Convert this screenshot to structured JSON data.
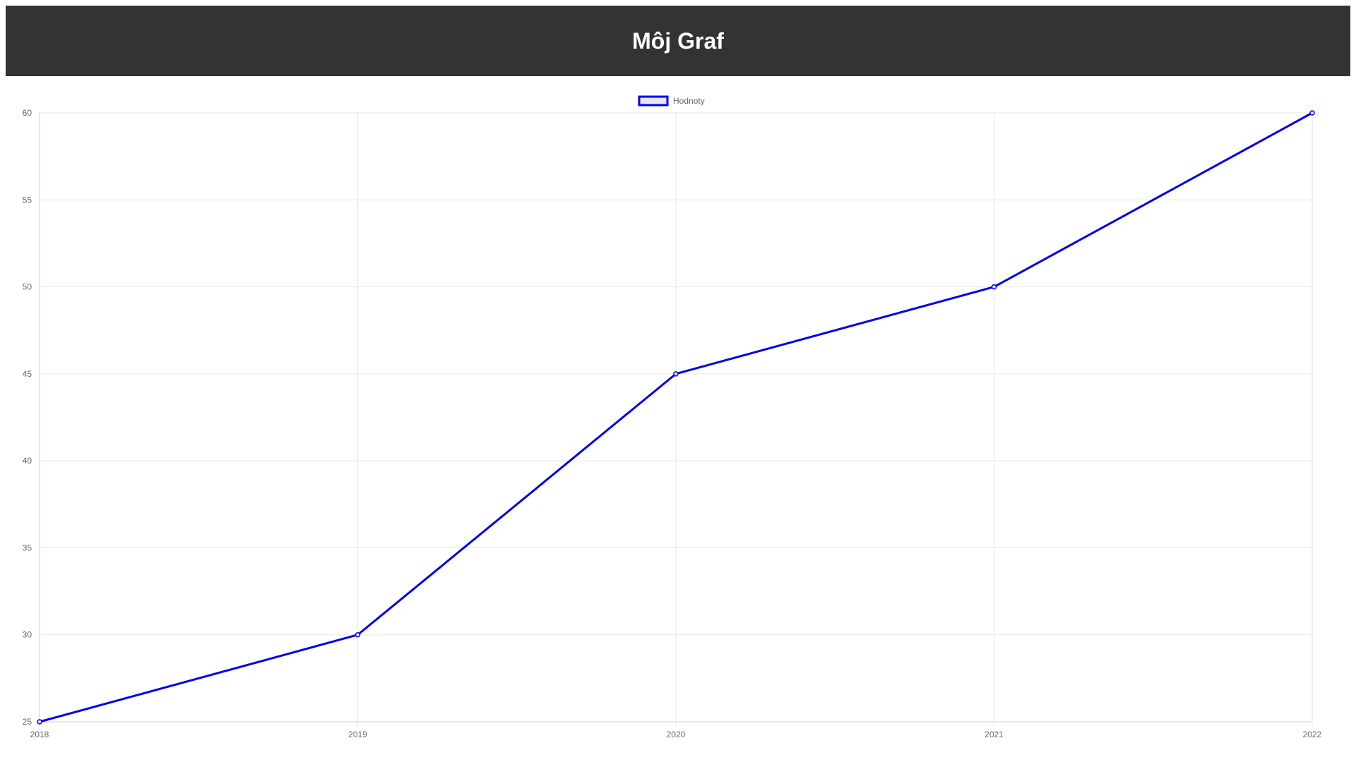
{
  "header": {
    "title": "Môj Graf"
  },
  "chart_data": {
    "type": "line",
    "title": "",
    "xlabel": "",
    "ylabel": "",
    "categories": [
      "2018",
      "2019",
      "2020",
      "2021",
      "2022"
    ],
    "series": [
      {
        "name": "Hodnoty",
        "values": [
          25,
          30,
          45,
          50,
          60
        ],
        "color": "#0000ee",
        "fill": "#e6e6f5"
      }
    ],
    "ylim": [
      25,
      60
    ],
    "ytick_step": 5,
    "yticks": [
      "25",
      "30",
      "35",
      "40",
      "45",
      "50",
      "55",
      "60"
    ],
    "grid": true,
    "grid_color": "#e6e6e6",
    "legend_position": "top-center"
  }
}
